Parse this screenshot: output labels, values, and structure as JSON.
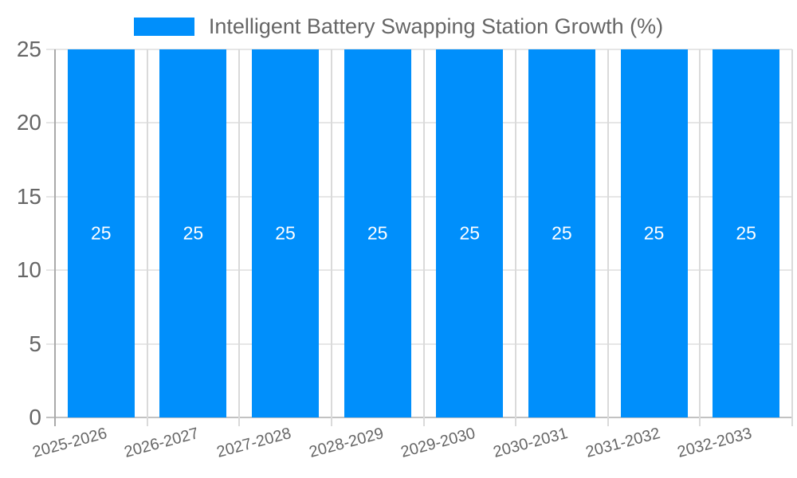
{
  "chart_data": {
    "type": "bar",
    "title": "Intelligent Battery Swapping Station Growth (%)",
    "categories": [
      "2025-2026",
      "2026-2027",
      "2027-2028",
      "2028-2029",
      "2029-2030",
      "2030-2031",
      "2031-2032",
      "2032-2033"
    ],
    "series": [
      {
        "name": "Intelligent Battery Swapping Station Growth (%)",
        "values": [
          25,
          25,
          25,
          25,
          25,
          25,
          25,
          25
        ]
      }
    ],
    "bar_value_labels": [
      "25",
      "25",
      "25",
      "25",
      "25",
      "25",
      "25",
      "25"
    ],
    "yticks": [
      "0",
      "5",
      "10",
      "15",
      "20",
      "25"
    ],
    "ylim": [
      0,
      25
    ],
    "xlabel": "",
    "ylabel": "",
    "grid": true,
    "legend_position": "top",
    "x_label_rotation_deg": -15,
    "colors": {
      "bar": "#008FFB",
      "bar_label_text": "#ffffff",
      "axis_text": "#666666",
      "grid_horizontal": "#e6e6e6",
      "grid_vertical": "#dadada",
      "baseline": "#c2c2c2",
      "left_axis_line": "#a9a9a9"
    }
  }
}
